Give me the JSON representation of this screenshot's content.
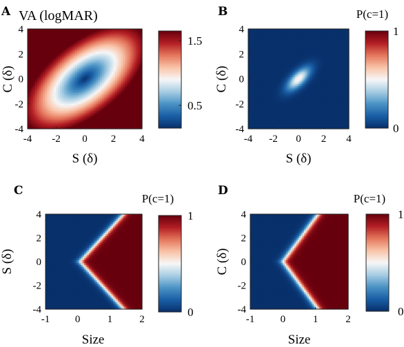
{
  "colormap": [
    "#08306b",
    "#1a5fa6",
    "#4b93c5",
    "#a7cde3",
    "#f7f7f7",
    "#f9c3a8",
    "#e4765c",
    "#b31e24",
    "#67000d"
  ],
  "chart_data": [
    {
      "panel": "A",
      "type": "heatmap",
      "title": "VA (logMAR)",
      "xlabel": "S (δ)",
      "ylabel": "C (δ)",
      "xlim": [
        -4,
        4
      ],
      "ylim": [
        -4,
        4
      ],
      "xticks": [
        "-4",
        "-2",
        "0",
        "2",
        "4"
      ],
      "yticks": [
        "4",
        "2",
        "0",
        "-2",
        "-4"
      ],
      "colorbar": {
        "title": "",
        "range": [
          0.15,
          1.65
        ],
        "ticks": [
          "1.5",
          "0.5"
        ],
        "tick_values": [
          1.5,
          0.5
        ]
      },
      "model": "VA rises with distance from origin along an ellipse tilted along S = -C; minimum ≈0.15 at (0,0)"
    },
    {
      "panel": "B",
      "type": "heatmap",
      "title": "",
      "xlabel": "S (δ)",
      "ylabel": "C (δ)",
      "xlim": [
        -4,
        4
      ],
      "ylim": [
        -4,
        4
      ],
      "xticks": [
        "-4",
        "-2",
        "0",
        "2",
        "4"
      ],
      "yticks": [
        "4",
        "2",
        "0",
        "-2",
        "-4"
      ],
      "colorbar": {
        "title": "P(c=1)",
        "range": [
          0,
          1
        ],
        "ticks": [
          "1",
          "0"
        ],
        "tick_values": [
          1,
          0
        ]
      },
      "model": "Small bright elliptical spot (P≈0.5) at origin, tilted along S = -C; value 0 elsewhere"
    },
    {
      "panel": "C",
      "type": "heatmap",
      "title": "",
      "xlabel": "Size",
      "ylabel": "S (δ)",
      "xlim": [
        -1,
        2
      ],
      "ylim": [
        -4,
        4
      ],
      "xticks": [
        "-1",
        "0",
        "1",
        "2"
      ],
      "yticks": [
        "4",
        "2",
        "0",
        "-2",
        "-4"
      ],
      "colorbar": {
        "title": "P(c=1)",
        "range": [
          0,
          1
        ],
        "ticks": [
          "1",
          "0"
        ],
        "tick_values": [
          1,
          0
        ]
      },
      "model": "P≈1 where Size > 0.07 + 0.34·|S|, sharp transition boundary"
    },
    {
      "panel": "D",
      "type": "heatmap",
      "title": "",
      "xlabel": "Size",
      "ylabel": "C (δ)",
      "xlim": [
        -1,
        2
      ],
      "ylim": [
        -4,
        4
      ],
      "xticks": [
        "-1",
        "0",
        "1",
        "2"
      ],
      "yticks": [
        "4",
        "2",
        "0",
        "-2",
        "-4"
      ],
      "colorbar": {
        "title": "P(c=1)",
        "range": [
          0,
          1
        ],
        "ticks": [
          "1",
          "0"
        ],
        "tick_values": [
          1,
          0
        ]
      },
      "model": "P≈1 where Size > 0.0 + 0.27·|C|, sharp transition boundary"
    }
  ]
}
